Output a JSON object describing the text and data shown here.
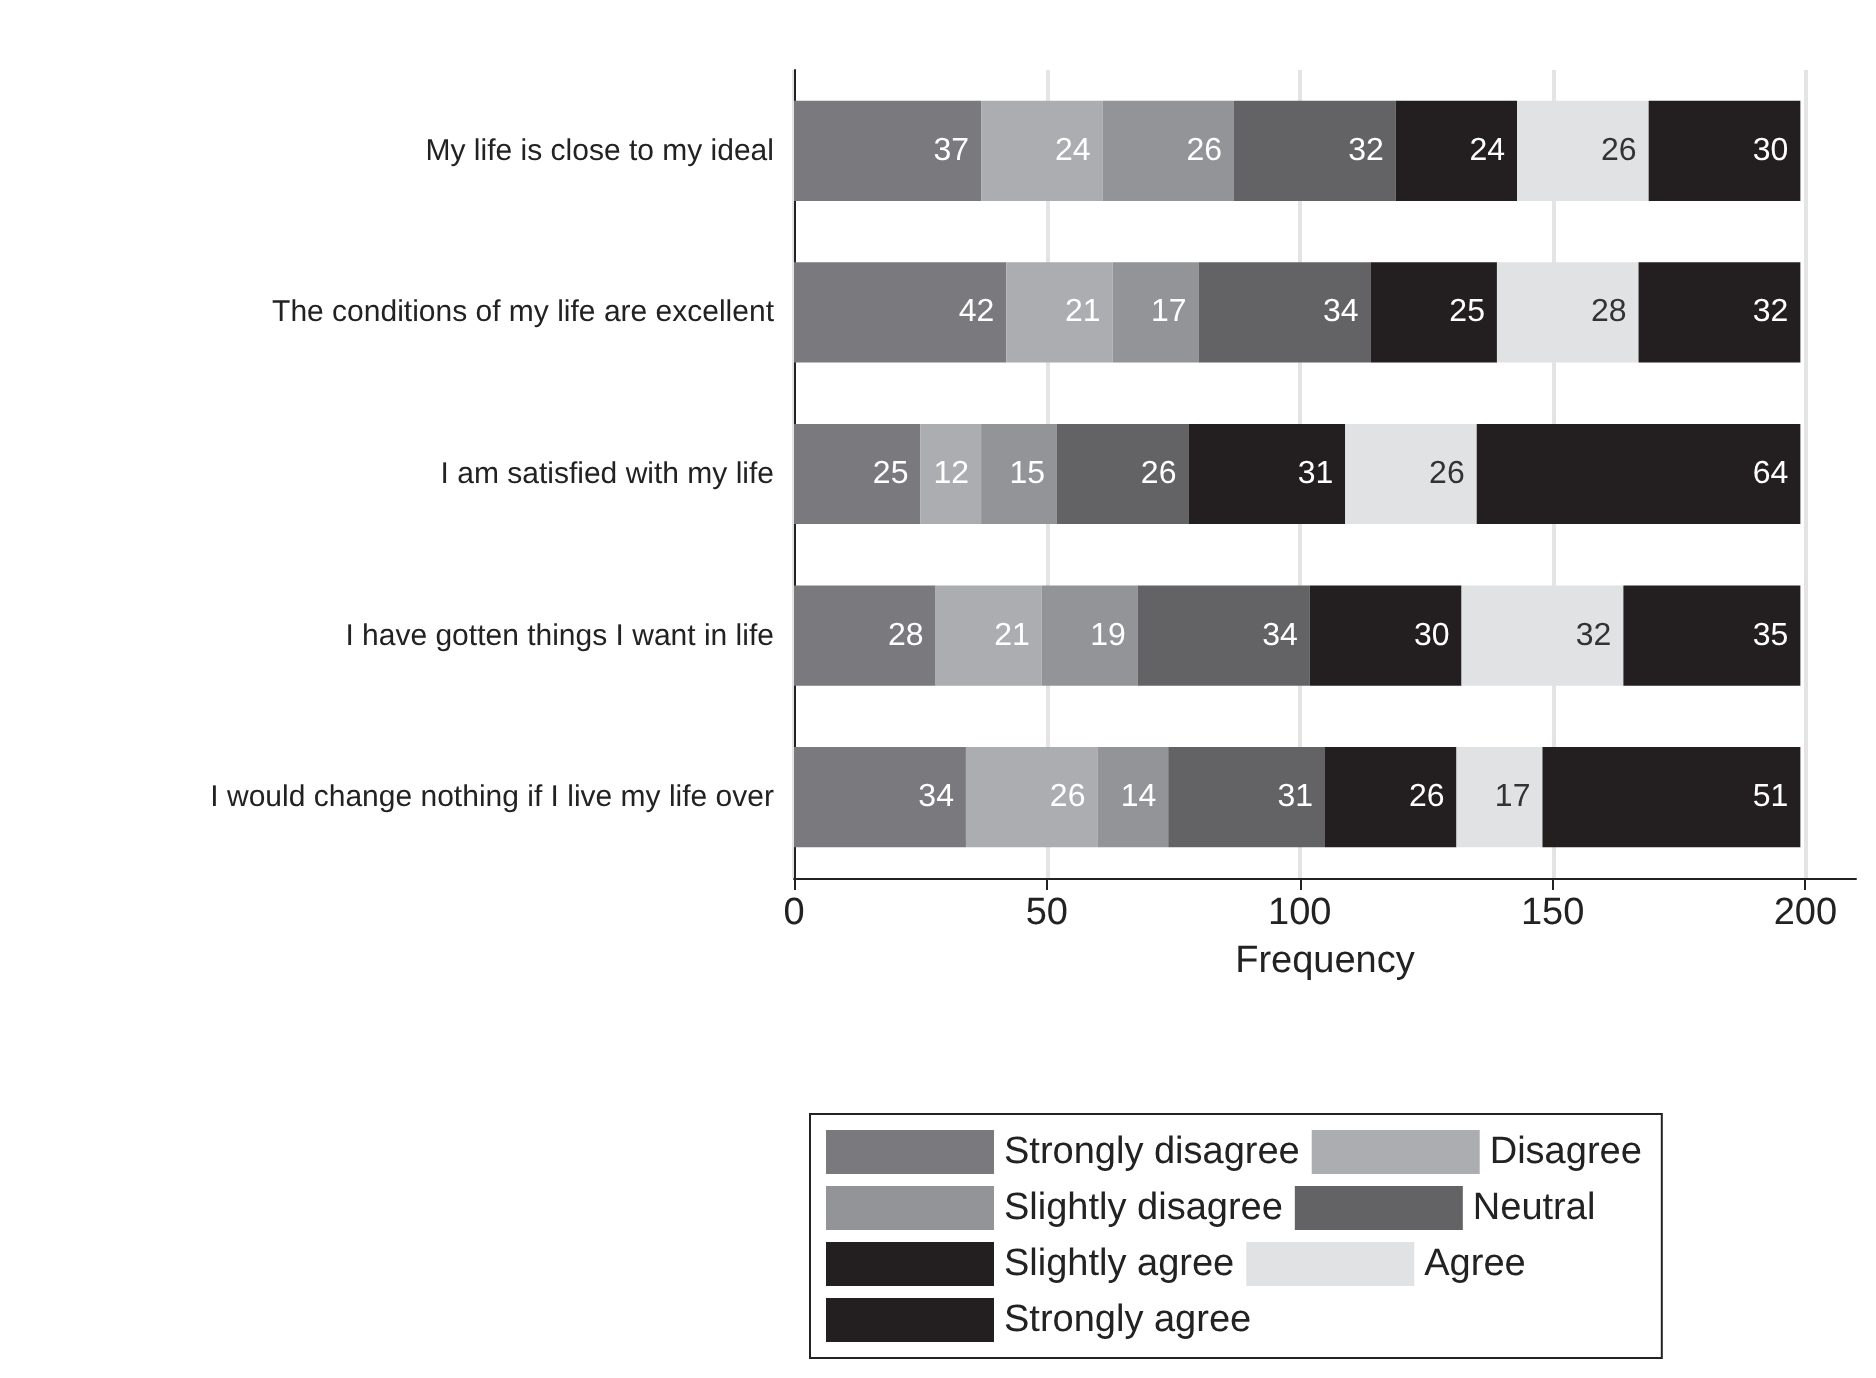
{
  "chart_data": {
    "type": "bar",
    "orientation": "horizontal",
    "stacked": true,
    "xlabel": "Frequency",
    "categories": [
      "My life is close to my ideal",
      "The conditions of my life are excellent",
      "I am satisfied with my life",
      "I have gotten things I want in life",
      "I would change nothing if I live my life over"
    ],
    "series": [
      {
        "name": "Strongly disagree",
        "color": "#7a7a7e",
        "values": [
          37,
          42,
          25,
          28,
          34
        ]
      },
      {
        "name": "Disagree",
        "color": "#acadb0",
        "values": [
          24,
          21,
          12,
          21,
          26
        ]
      },
      {
        "name": "Slightly disagree",
        "color": "#939497",
        "values": [
          26,
          17,
          15,
          19,
          14
        ]
      },
      {
        "name": "Neutral",
        "color": "#636365",
        "values": [
          32,
          34,
          26,
          34,
          31
        ]
      },
      {
        "name": "Slightly agree",
        "color": "#231f20",
        "values": [
          24,
          25,
          31,
          30,
          26
        ]
      },
      {
        "name": "Agree",
        "color": "#e1e2e3",
        "values": [
          26,
          28,
          26,
          32,
          17
        ]
      },
      {
        "name": "Strongly agree",
        "color": "#231f20",
        "values": [
          30,
          32,
          64,
          35,
          51
        ]
      }
    ],
    "xlim": [
      0,
      210
    ],
    "xticks": [
      0,
      50,
      100,
      150,
      200
    ],
    "grid": "x",
    "legend": "bottom",
    "data_labels": true
  }
}
